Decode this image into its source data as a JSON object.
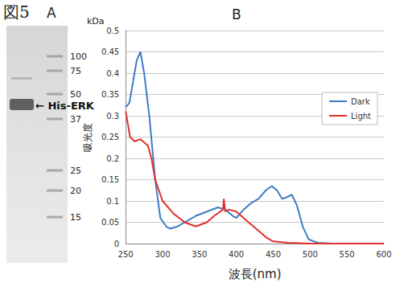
{
  "figure": "図5",
  "gel_panel": {
    "label": "A",
    "unit": "kDa",
    "markers": [
      100,
      75,
      50,
      37,
      25,
      20,
      15
    ],
    "band_label": "← His-ERK"
  },
  "chart_data": {
    "type": "line",
    "title": "B",
    "xlabel": "波長(nm)",
    "ylabel": "吸光度",
    "xlim": [
      250,
      600
    ],
    "xticks": [
      250,
      300,
      350,
      400,
      450,
      500,
      550,
      600
    ],
    "ylim": [
      0,
      0.5
    ],
    "yticks": [
      0,
      0.05,
      0.1,
      0.15,
      0.2,
      0.25,
      0.3,
      0.35,
      0.4,
      0.45,
      0.5
    ],
    "grid": true,
    "legend": "right",
    "series": [
      {
        "name": "Dark",
        "color": "#3c7cc4",
        "x": [
          250,
          255,
          260,
          265,
          270,
          275,
          282,
          290,
          297,
          305,
          310,
          320,
          330,
          345,
          360,
          375,
          385,
          395,
          400,
          410,
          420,
          430,
          440,
          448,
          455,
          462,
          470,
          475,
          482,
          490,
          498,
          510,
          530,
          600
        ],
        "values": [
          0.32,
          0.33,
          0.38,
          0.43,
          0.45,
          0.4,
          0.3,
          0.15,
          0.06,
          0.04,
          0.035,
          0.04,
          0.05,
          0.065,
          0.075,
          0.085,
          0.08,
          0.065,
          0.06,
          0.08,
          0.095,
          0.105,
          0.125,
          0.135,
          0.125,
          0.105,
          0.11,
          0.115,
          0.09,
          0.04,
          0.01,
          0.002,
          0,
          0
        ]
      },
      {
        "name": "Light",
        "color": "#e0302f",
        "x": [
          250,
          256,
          262,
          270,
          280,
          285,
          290,
          300,
          315,
          330,
          345,
          360,
          370,
          378,
          382,
          383,
          385,
          390,
          400,
          410,
          420,
          430,
          440,
          450,
          470,
          500,
          600
        ],
        "values": [
          0.31,
          0.25,
          0.24,
          0.245,
          0.23,
          0.2,
          0.15,
          0.1,
          0.07,
          0.05,
          0.04,
          0.05,
          0.065,
          0.075,
          0.08,
          0.105,
          0.075,
          0.08,
          0.075,
          0.06,
          0.045,
          0.03,
          0.015,
          0.005,
          0.002,
          0,
          0
        ]
      }
    ]
  }
}
